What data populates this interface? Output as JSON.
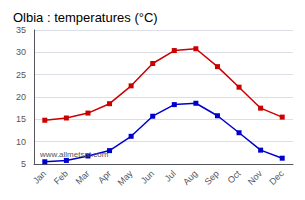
{
  "chart_data": {
    "type": "line",
    "title": "Olbia : temperatures (°C)",
    "categories": [
      "Jan",
      "Feb",
      "Mar",
      "Apr",
      "May",
      "Jun",
      "Jul",
      "Aug",
      "Sep",
      "Oct",
      "Nov",
      "Dec"
    ],
    "series": [
      {
        "color": "#cc0000",
        "marker": "square",
        "values": [
          14.8,
          15.3,
          16.4,
          18.5,
          22.5,
          27.5,
          30.4,
          30.8,
          26.8,
          22.2,
          17.5,
          15.5
        ]
      },
      {
        "color": "#0000cc",
        "marker": "square",
        "values": [
          5.5,
          5.8,
          6.8,
          8.0,
          11.2,
          15.7,
          18.3,
          18.6,
          15.8,
          12.0,
          8.1,
          6.3
        ]
      }
    ],
    "ylim": [
      5,
      35
    ],
    "yticks": [
      5,
      10,
      15,
      20,
      25,
      30,
      35
    ],
    "grid": true,
    "annotation": "www.allmetsat.com"
  }
}
